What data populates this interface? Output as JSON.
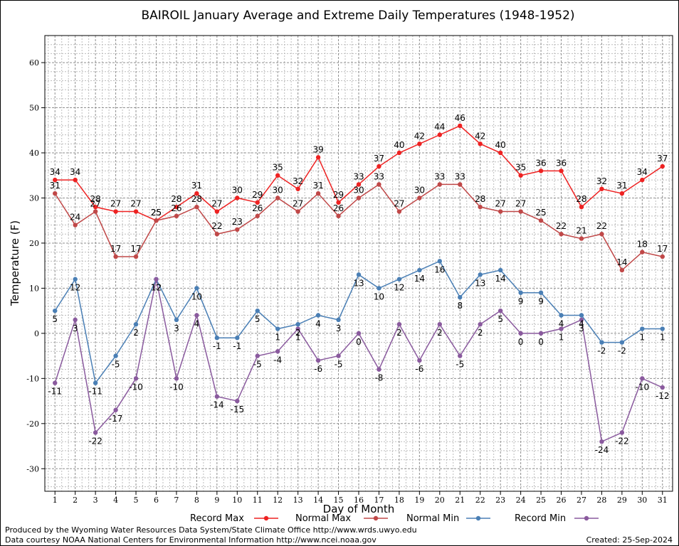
{
  "footer": {
    "produced_by": "Produced by the Wyoming Water Resources Data System/State Climate Office http://www.wrds.uwyo.edu",
    "courtesy": "Data courtesy NOAA National Centers for Environmental Information http://www.ncei.noaa.gov",
    "created": "Created:  25-Sep-2024"
  },
  "chart_data": {
    "type": "line",
    "title": "BAIROIL January Average and Extreme Daily Temperatures (1948-1952)",
    "xlabel": "Day of Month",
    "ylabel": "Temperature (F)",
    "x": [
      1,
      2,
      3,
      4,
      5,
      6,
      7,
      8,
      9,
      10,
      11,
      12,
      13,
      14,
      15,
      16,
      17,
      18,
      19,
      20,
      21,
      22,
      23,
      24,
      25,
      26,
      27,
      28,
      29,
      30,
      31
    ],
    "xlim": [
      0.5,
      31.5
    ],
    "ylim": [
      -35,
      66
    ],
    "yticks": [
      -30,
      -20,
      -10,
      0,
      10,
      20,
      30,
      40,
      50,
      60
    ],
    "grid": true,
    "legend_placement": "bottom",
    "series": [
      {
        "name": "Record Max",
        "color": "#ee2222",
        "values": [
          34,
          34,
          28,
          27,
          27,
          25,
          28,
          31,
          27,
          30,
          29,
          35,
          32,
          39,
          29,
          33,
          37,
          40,
          42,
          44,
          46,
          42,
          40,
          35,
          36,
          36,
          28,
          32,
          31,
          34,
          37
        ]
      },
      {
        "name": "Normal Max",
        "color": "#c04848",
        "values": [
          31,
          24,
          27,
          17,
          17,
          25,
          26,
          28,
          22,
          23,
          26,
          30,
          27,
          31,
          26,
          30,
          33,
          27,
          30,
          33,
          33,
          28,
          27,
          27,
          25,
          22,
          21,
          22,
          14,
          18,
          17
        ]
      },
      {
        "name": "Normal Min",
        "color": "#4a7fb5",
        "values": [
          5,
          12,
          -11,
          -5,
          2,
          12,
          3,
          10,
          -1,
          -1,
          5,
          1,
          2,
          4,
          3,
          13,
          10,
          12,
          14,
          16,
          8,
          13,
          14,
          9,
          9,
          4,
          4,
          -2,
          -2,
          1,
          1
        ]
      },
      {
        "name": "Record Min",
        "color": "#8a5a9e",
        "values": [
          -11,
          3,
          -22,
          -17,
          -10,
          12,
          -10,
          4,
          -14,
          -15,
          -5,
          -4,
          1,
          -6,
          -5,
          0,
          -8,
          2,
          -6,
          2,
          -5,
          2,
          5,
          0,
          0,
          1,
          3,
          -24,
          -22,
          -10,
          -12
        ]
      }
    ]
  }
}
